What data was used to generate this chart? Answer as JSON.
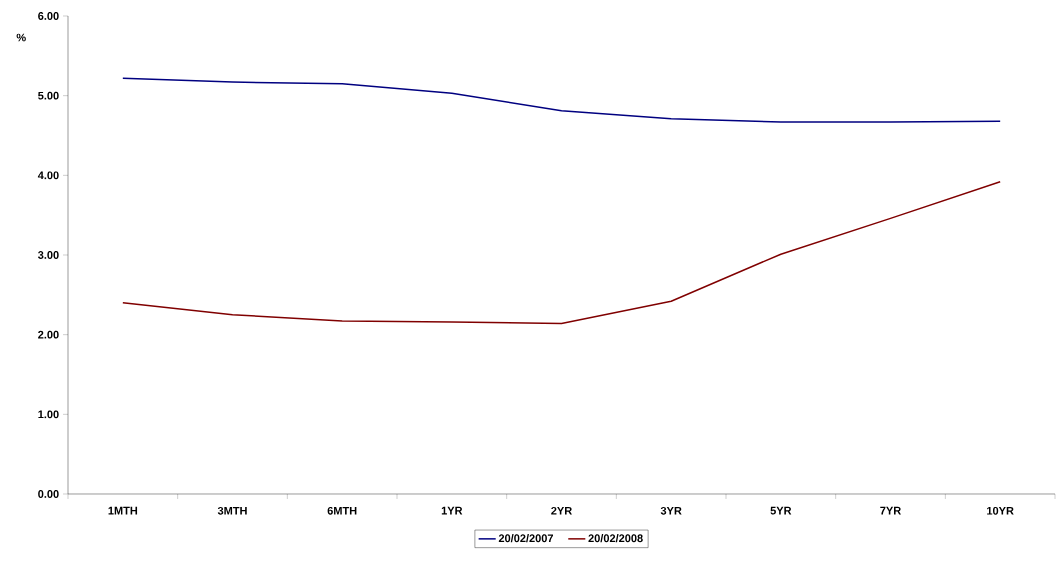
{
  "chart_data": {
    "type": "line",
    "ylabel": "%",
    "categories": [
      "1MTH",
      "3MTH",
      "6MTH",
      "1YR",
      "2YR",
      "3YR",
      "5YR",
      "7YR",
      "10YR"
    ],
    "series": [
      {
        "name": "20/02/2007",
        "color": "#000080",
        "values": [
          5.22,
          5.17,
          5.15,
          5.03,
          4.81,
          4.71,
          4.67,
          4.67,
          4.68
        ]
      },
      {
        "name": "20/02/2008",
        "color": "#800000",
        "values": [
          2.4,
          2.25,
          2.17,
          2.16,
          2.14,
          2.42,
          3.01,
          3.46,
          3.92
        ]
      }
    ],
    "ylim": [
      0,
      6
    ],
    "yticks": [
      {
        "value": 0,
        "label": "0.00"
      },
      {
        "value": 1,
        "label": "1.00"
      },
      {
        "value": 2,
        "label": "2.00"
      },
      {
        "value": 3,
        "label": "3.00"
      },
      {
        "value": 4,
        "label": "4.00"
      },
      {
        "value": 5,
        "label": "5.00"
      },
      {
        "value": 6,
        "label": "6.00"
      }
    ],
    "grid": false,
    "legend": "bottom",
    "marker": "none",
    "line_style": "solid"
  }
}
